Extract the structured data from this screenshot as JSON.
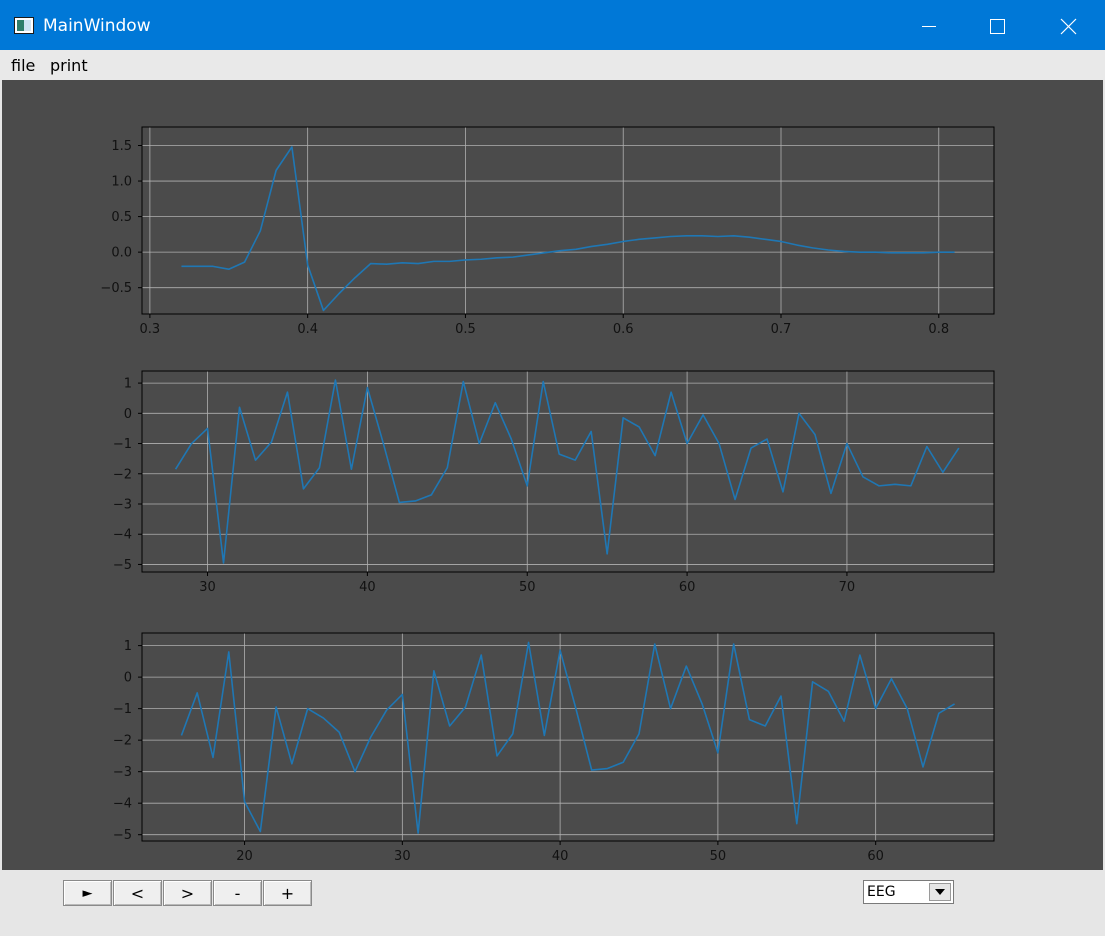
{
  "window": {
    "title": "MainWindow",
    "accent_color": "#0078d7"
  },
  "menu": {
    "items": [
      "file",
      "print"
    ]
  },
  "controls": {
    "play_label": "►",
    "prev_label": "<",
    "next_label": ">",
    "zoom_out_label": "-",
    "zoom_in_label": "+",
    "channel_select": {
      "selected": "EEG"
    }
  },
  "chart_data": [
    {
      "type": "line",
      "line_color": "#1f77b4",
      "background": "#4b4b4b",
      "grid": true,
      "xlim": [
        0.295,
        0.835
      ],
      "ylim": [
        -0.87,
        1.76
      ],
      "xticks": [
        0.3,
        0.4,
        0.5,
        0.6,
        0.7,
        0.8
      ],
      "xtick_labels": [
        "0.3",
        "0.4",
        "0.5",
        "0.6",
        "0.7",
        "0.8"
      ],
      "yticks": [
        -0.5,
        0.0,
        0.5,
        1.0,
        1.5
      ],
      "ytick_labels": [
        "−0.5",
        "0.0",
        "0.5",
        "1.0",
        "1.5"
      ],
      "x": [
        0.32,
        0.33,
        0.34,
        0.35,
        0.36,
        0.37,
        0.38,
        0.39,
        0.4,
        0.41,
        0.42,
        0.43,
        0.44,
        0.45,
        0.46,
        0.47,
        0.48,
        0.49,
        0.5,
        0.51,
        0.52,
        0.53,
        0.54,
        0.55,
        0.56,
        0.57,
        0.58,
        0.59,
        0.6,
        0.61,
        0.62,
        0.63,
        0.64,
        0.65,
        0.66,
        0.67,
        0.68,
        0.69,
        0.7,
        0.71,
        0.72,
        0.73,
        0.74,
        0.75,
        0.76,
        0.77,
        0.78,
        0.79,
        0.8,
        0.81
      ],
      "y": [
        -0.2,
        -0.2,
        -0.2,
        -0.24,
        -0.14,
        0.3,
        1.15,
        1.48,
        -0.18,
        -0.82,
        -0.58,
        -0.36,
        -0.16,
        -0.17,
        -0.15,
        -0.16,
        -0.13,
        -0.13,
        -0.11,
        -0.1,
        -0.08,
        -0.07,
        -0.04,
        -0.01,
        0.02,
        0.04,
        0.08,
        0.11,
        0.15,
        0.18,
        0.2,
        0.22,
        0.23,
        0.23,
        0.22,
        0.23,
        0.21,
        0.18,
        0.15,
        0.1,
        0.06,
        0.03,
        0.01,
        0.0,
        0.0,
        -0.01,
        -0.01,
        -0.01,
        0.0,
        0.0
      ]
    },
    {
      "type": "line",
      "line_color": "#1f77b4",
      "background": "#4b4b4b",
      "grid": true,
      "xlim": [
        25.9,
        79.2
      ],
      "ylim": [
        -5.25,
        1.4
      ],
      "xticks": [
        30,
        40,
        50,
        60,
        70
      ],
      "xtick_labels": [
        "30",
        "40",
        "50",
        "60",
        "70"
      ],
      "yticks": [
        -5,
        -4,
        -3,
        -2,
        -1,
        0,
        1
      ],
      "ytick_labels": [
        "−5",
        "−4",
        "−3",
        "−2",
        "−1",
        "0",
        "1"
      ],
      "x": [
        28,
        29,
        30,
        31,
        32,
        33,
        34,
        35,
        36,
        37,
        38,
        39,
        40,
        41,
        42,
        43,
        44,
        45,
        46,
        47,
        48,
        49,
        50,
        51,
        52,
        53,
        54,
        55,
        56,
        57,
        58,
        59,
        60,
        61,
        62,
        63,
        64,
        65,
        66,
        67,
        68,
        69,
        70,
        71,
        72,
        73,
        74,
        75,
        76,
        77
      ],
      "y": [
        -1.85,
        -1.0,
        -0.5,
        -4.95,
        0.2,
        -1.55,
        -0.95,
        0.7,
        -2.5,
        -1.8,
        1.1,
        -1.85,
        0.85,
        -1.0,
        -2.95,
        -2.9,
        -2.7,
        -1.8,
        1.05,
        -1.0,
        0.35,
        -0.85,
        -2.4,
        1.05,
        -1.35,
        -1.55,
        -0.6,
        -4.65,
        -0.15,
        -0.45,
        -1.4,
        0.7,
        -1.0,
        -0.05,
        -1.0,
        -2.85,
        -1.15,
        -0.85,
        -2.6,
        0.0,
        -0.7,
        -2.65,
        -1.0,
        -2.1,
        -2.4,
        -2.35,
        -2.4,
        -1.1,
        -1.95,
        -1.15
      ]
    },
    {
      "type": "line",
      "line_color": "#1f77b4",
      "background": "#4b4b4b",
      "grid": true,
      "xlim": [
        13.5,
        67.5
      ],
      "ylim": [
        -5.2,
        1.4
      ],
      "xticks": [
        20,
        30,
        40,
        50,
        60
      ],
      "xtick_labels": [
        "20",
        "30",
        "40",
        "50",
        "60"
      ],
      "yticks": [
        -5,
        -4,
        -3,
        -2,
        -1,
        0,
        1
      ],
      "ytick_labels": [
        "−5",
        "−4",
        "−3",
        "−2",
        "−1",
        "0",
        "1"
      ],
      "x": [
        16,
        17,
        18,
        19,
        20,
        21,
        22,
        23,
        24,
        25,
        26,
        27,
        28,
        29,
        30,
        31,
        32,
        33,
        34,
        35,
        36,
        37,
        38,
        39,
        40,
        41,
        42,
        43,
        44,
        45,
        46,
        47,
        48,
        49,
        50,
        51,
        52,
        53,
        54,
        55,
        56,
        57,
        58,
        59,
        60,
        61,
        62,
        63,
        64,
        65
      ],
      "y": [
        -1.85,
        -0.5,
        -2.55,
        0.8,
        -3.95,
        -4.9,
        -0.95,
        -2.75,
        -1.0,
        -1.3,
        -1.75,
        -3.0,
        -1.9,
        -1.05,
        -0.55,
        -4.95,
        0.2,
        -1.55,
        -0.95,
        0.7,
        -2.5,
        -1.8,
        1.1,
        -1.85,
        0.85,
        -1.0,
        -2.95,
        -2.9,
        -2.7,
        -1.8,
        1.05,
        -1.0,
        0.35,
        -0.85,
        -2.4,
        1.05,
        -1.35,
        -1.55,
        -0.6,
        -4.65,
        -0.15,
        -0.45,
        -1.4,
        0.7,
        -1.0,
        -0.05,
        -1.0,
        -2.85,
        -1.15,
        -0.85
      ]
    }
  ]
}
